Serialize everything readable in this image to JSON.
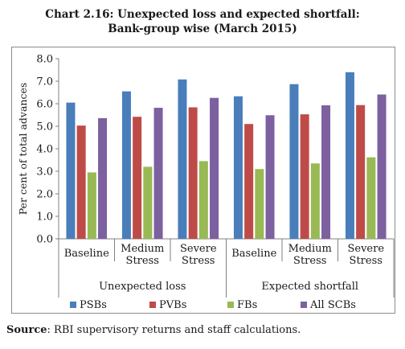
{
  "title_line1": "Chart 2.16: Unexpected loss and expected shortfall:",
  "title_line2": "Bank-group wise (March 2015)",
  "source_label": "Source",
  "source_text": ": RBI supervisory returns and staff calculations.",
  "chart_data": {
    "type": "bar",
    "ylabel": "Per cent of total advances",
    "ylim": [
      0,
      8
    ],
    "yticks": [
      "0.0",
      "1.0",
      "2.0",
      "3.0",
      "4.0",
      "5.0",
      "6.0",
      "7.0",
      "8.0"
    ],
    "groups": [
      {
        "label": "Unexpected loss",
        "categories": [
          [
            "Baseline"
          ],
          [
            "Medium",
            "Stress"
          ],
          [
            "Severe",
            "Stress"
          ]
        ]
      },
      {
        "label": "Expected shortfall",
        "categories": [
          [
            "Baseline"
          ],
          [
            "Medium",
            "Stress"
          ],
          [
            "Severe",
            "Stress"
          ]
        ]
      }
    ],
    "series": [
      {
        "name": "PSBs",
        "color": "#4a7ebb",
        "values": [
          6.05,
          6.55,
          7.08,
          6.33,
          6.87,
          7.4
        ]
      },
      {
        "name": "PVBs",
        "color": "#be4b48",
        "values": [
          5.03,
          5.42,
          5.84,
          5.1,
          5.53,
          5.94
        ]
      },
      {
        "name": "FBs",
        "color": "#98b954",
        "values": [
          2.95,
          3.2,
          3.45,
          3.1,
          3.35,
          3.62
        ]
      },
      {
        "name": "All SCBs",
        "color": "#7d60a0",
        "values": [
          5.36,
          5.82,
          6.26,
          5.49,
          5.93,
          6.41
        ]
      }
    ],
    "grid": false,
    "legend": "bottom"
  }
}
